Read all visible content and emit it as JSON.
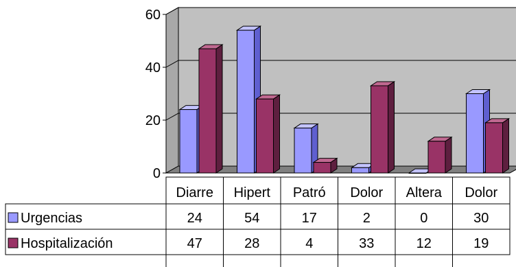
{
  "chart_data": {
    "type": "bar",
    "categories": [
      "Diarre",
      "Hipert",
      "Patró",
      "Dolor",
      "Altera",
      "Dolor"
    ],
    "series": [
      {
        "name": "Urgencias",
        "values": [
          24,
          54,
          17,
          2,
          0,
          30
        ],
        "color": "#9999ff",
        "side_color": "#5f5fd0",
        "top_color": "#c3c3ff"
      },
      {
        "name": "Hospitalización",
        "values": [
          47,
          28,
          4,
          33,
          12,
          19
        ],
        "color": "#993366",
        "side_color": "#5e1f3f",
        "top_color": "#c06890"
      }
    ],
    "y_ticks": [
      0,
      20,
      40,
      60
    ],
    "ylim": [
      0,
      60
    ],
    "grid": true,
    "legend": "data-table-left",
    "plot_background": "#c0c0c0",
    "floor_color": "#808080"
  }
}
